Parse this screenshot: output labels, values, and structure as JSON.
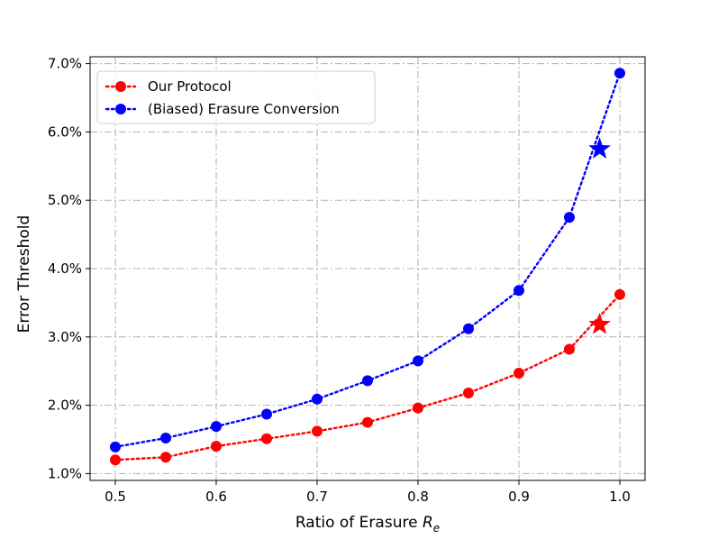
{
  "chart_data": {
    "type": "line",
    "title": "",
    "xlabel": "Ratio of Erasure",
    "xlabel_symbol": "R",
    "xlabel_subscript": "e",
    "ylabel": "Error Threshold",
    "xlim": [
      0.475,
      1.025
    ],
    "ylim": [
      0.9,
      7.1
    ],
    "xticks": [
      0.5,
      0.6,
      0.7,
      0.8,
      0.9,
      1.0
    ],
    "xtick_labels": [
      "0.5",
      "0.6",
      "0.7",
      "0.8",
      "0.9",
      "1.0"
    ],
    "yticks": [
      1,
      2,
      3,
      4,
      5,
      6,
      7
    ],
    "ytick_labels": [
      "1.0%",
      "2.0%",
      "3.0%",
      "4.0%",
      "5.0%",
      "6.0%",
      "7.0%"
    ],
    "grid": true,
    "legend_position": "top-left",
    "x": [
      0.5,
      0.55,
      0.6,
      0.65,
      0.7,
      0.75,
      0.8,
      0.85,
      0.9,
      0.95,
      1.0
    ],
    "series": [
      {
        "name": "Our Protocol",
        "color": "#ff0000",
        "values": [
          1.2,
          1.24,
          1.4,
          1.51,
          1.62,
          1.75,
          1.96,
          2.18,
          2.47,
          2.82,
          3.62
        ],
        "star": {
          "x": 0.98,
          "y": 3.18
        }
      },
      {
        "name": "(Biased) Erasure Conversion",
        "color": "#0000ff",
        "values": [
          1.39,
          1.52,
          1.69,
          1.87,
          2.09,
          2.36,
          2.65,
          3.12,
          3.68,
          4.75,
          6.86
        ],
        "star": {
          "x": 0.98,
          "y": 5.75
        }
      }
    ]
  }
}
